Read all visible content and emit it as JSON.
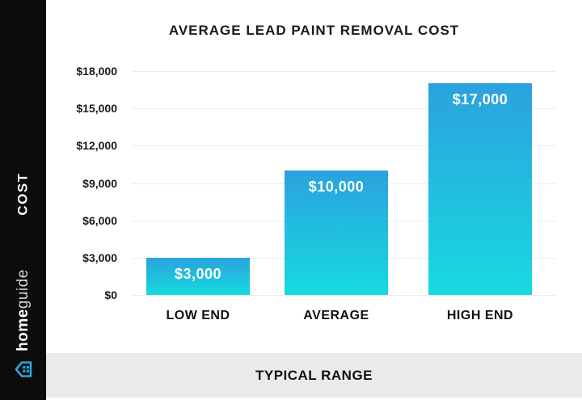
{
  "title": "AVERAGE LEAD PAINT REMOVAL COST",
  "sidebar": {
    "vertical_label": "COST",
    "brand_bold": "home",
    "brand_light": "guide",
    "house_icon": "house-icon"
  },
  "footer": {
    "label": "TYPICAL RANGE"
  },
  "colors": {
    "bar_gradient_top": "#2ba2de",
    "bar_gradient_bottom": "#16dadf",
    "sidebar_bg": "#0c0c0c",
    "footer_bg": "#eaeaea",
    "gridline": "#ececec",
    "text": "#1a1a1a",
    "bar_value_text": "#ffffff"
  },
  "chart_data": {
    "type": "bar",
    "title": "AVERAGE LEAD PAINT REMOVAL COST",
    "categories": [
      "LOW END",
      "AVERAGE",
      "HIGH END"
    ],
    "values": [
      3000,
      10000,
      17000
    ],
    "value_labels": [
      "$3,000",
      "$10,000",
      "$17,000"
    ],
    "y_ticks": [
      {
        "value": 18000,
        "label": "$18,000"
      },
      {
        "value": 15000,
        "label": "$15,000"
      },
      {
        "value": 12000,
        "label": "$12,000"
      },
      {
        "value": 9000,
        "label": "$9,000"
      },
      {
        "value": 6000,
        "label": "$6,000"
      },
      {
        "value": 3000,
        "label": "$3,000"
      },
      {
        "value": 0,
        "label": "$0"
      }
    ],
    "ylim": [
      0,
      18000
    ],
    "xlabel": "TYPICAL RANGE",
    "ylabel": "COST",
    "grid": true,
    "legend": false
  }
}
